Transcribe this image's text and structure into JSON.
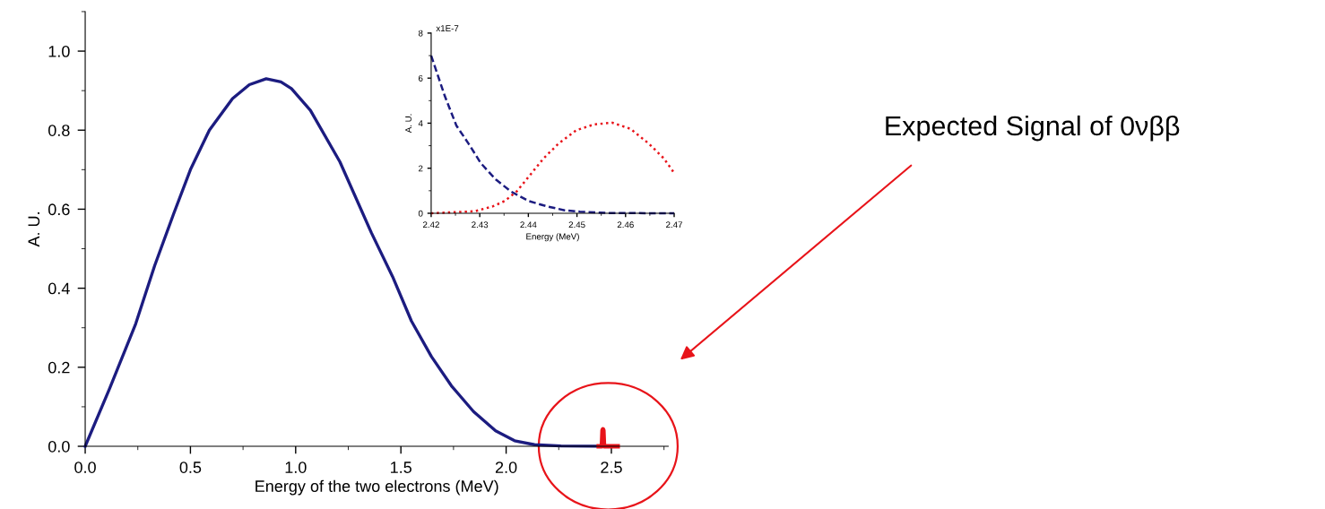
{
  "chart_data": [
    {
      "type": "line",
      "xlabel": "Energy of the two electrons (MeV)",
      "ylabel": "A. U.",
      "xlim": [
        0,
        2.77
      ],
      "ylim": [
        0,
        1.1
      ],
      "xticks": [
        {
          "value": 0,
          "label": "0.0"
        },
        0.5,
        {
          "value": 1,
          "label": "1.0"
        },
        1.5,
        {
          "value": 2,
          "label": "2.0"
        },
        2.5
      ],
      "yticks": [
        {
          "value": 0,
          "label": "0.0"
        },
        0.2,
        0.4,
        0.6,
        0.8,
        {
          "value": 1,
          "label": "1.0"
        }
      ],
      "grid": false,
      "line_style": "solid",
      "annotations": [
        "Expected Signal of 0νββ"
      ],
      "series": [
        {
          "color": "#1c1c80",
          "x": [
            0,
            0.115,
            0.24,
            0.33,
            0.42,
            0.5,
            0.59,
            0.7,
            0.78,
            0.86,
            0.93,
            0.98,
            1.07,
            1.21,
            1.36,
            1.46,
            1.55,
            1.645,
            1.74,
            1.845,
            1.95,
            2.04,
            2.135,
            2.26,
            2.53
          ],
          "values": [
            0,
            0.145,
            0.31,
            0.457,
            0.588,
            0.7,
            0.8,
            0.88,
            0.915,
            0.93,
            0.922,
            0.905,
            0.85,
            0.72,
            0.54,
            0.43,
            0.317,
            0.227,
            0.153,
            0.088,
            0.039,
            0.014,
            0.004,
            0.001,
            0
          ]
        },
        {
          "color": "#e8141a",
          "x": [
            2.44,
            2.455,
            2.458,
            2.46,
            2.462,
            2.465,
            2.53
          ],
          "values": [
            0,
            0,
            0.04,
            0.043,
            0.04,
            0,
            0
          ]
        }
      ]
    },
    {
      "type": "line",
      "xlabel": "Energy (MeV)",
      "ylabel": "A. U.",
      "xlim": [
        2.42,
        2.47
      ],
      "ylim": [
        0,
        8
      ],
      "xticks": [
        2.42,
        2.43,
        2.44,
        2.45,
        2.46,
        2.47
      ],
      "yticks": [
        0,
        2,
        4,
        6,
        8
      ],
      "grid": false,
      "annotations": [
        "x1E-7"
      ],
      "series": [
        {
          "color": "#1c1c80",
          "line_style": "dashed",
          "x": [
            2.42,
            2.4228,
            2.4252,
            2.4277,
            2.4302,
            2.4333,
            2.4364,
            2.4401,
            2.4438,
            2.4475,
            2.4506,
            2.4567,
            2.47
          ],
          "values": [
            7.0,
            5.21,
            3.89,
            3.09,
            2.23,
            1.5,
            0.97,
            0.54,
            0.31,
            0.13,
            0.07,
            0.01,
            0
          ]
        },
        {
          "color": "#e8141a",
          "line_style": "dotted",
          "x": [
            2.42,
            2.429,
            2.4327,
            2.4351,
            2.4376,
            2.4401,
            2.4431,
            2.4462,
            2.4499,
            2.4536,
            2.4573,
            2.461,
            2.4648,
            2.4679,
            2.47
          ],
          "values": [
            0,
            0.09,
            0.31,
            0.54,
            0.97,
            1.63,
            2.43,
            3.09,
            3.69,
            3.95,
            4.02,
            3.75,
            3.09,
            2.43,
            1.79
          ]
        }
      ]
    }
  ]
}
